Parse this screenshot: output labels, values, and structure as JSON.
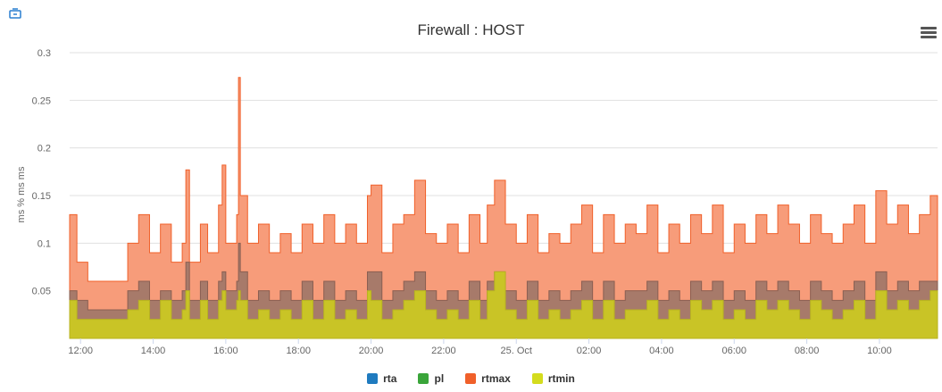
{
  "chart_data": {
    "type": "area",
    "title": "Firewall : HOST",
    "ylabel": "ms % ms ms",
    "xlabel": "",
    "ylim": [
      0,
      0.3
    ],
    "y_ticks": [
      "0.05",
      "0.1",
      "0.15",
      "0.2",
      "0.25",
      "0.3"
    ],
    "x_ticks": [
      "12:00",
      "14:00",
      "16:00",
      "18:00",
      "20:00",
      "22:00",
      "25. Oct",
      "02:00",
      "04:00",
      "06:00",
      "08:00",
      "10:00"
    ],
    "x_range_hours": [
      11.7,
      35.6
    ],
    "grid": true,
    "legend_position": "bottom",
    "series": [
      {
        "name": "rta",
        "color": "#1f7bbf"
      },
      {
        "name": "pl",
        "color": "#3aa53a"
      },
      {
        "name": "rtmax",
        "color": "#f0602a"
      },
      {
        "name": "rtmin",
        "color": "#d4dc1e"
      }
    ],
    "sampled_profile": {
      "x_hours": [
        11.7,
        11.9,
        12.2,
        12.5,
        12.8,
        13.0,
        13.3,
        13.6,
        13.9,
        14.2,
        14.5,
        14.8,
        14.9,
        15.0,
        15.3,
        15.5,
        15.8,
        15.9,
        16.0,
        16.3,
        16.35,
        16.4,
        16.6,
        16.9,
        17.2,
        17.5,
        17.8,
        18.1,
        18.4,
        18.7,
        19.0,
        19.3,
        19.6,
        19.9,
        20.0,
        20.3,
        20.6,
        20.9,
        21.2,
        21.5,
        21.8,
        22.1,
        22.4,
        22.7,
        23.0,
        23.2,
        23.4,
        23.7,
        24.0,
        24.3,
        24.6,
        24.9,
        25.2,
        25.5,
        25.8,
        26.1,
        26.4,
        26.7,
        27.0,
        27.3,
        27.6,
        27.9,
        28.2,
        28.5,
        28.8,
        29.1,
        29.4,
        29.7,
        30.0,
        30.3,
        30.6,
        30.9,
        31.2,
        31.5,
        31.8,
        32.1,
        32.4,
        32.7,
        33.0,
        33.3,
        33.6,
        33.9,
        34.2,
        34.5,
        34.8,
        35.1,
        35.4,
        35.6
      ],
      "rtmax": [
        0.13,
        0.08,
        0.06,
        0.06,
        0.06,
        0.06,
        0.1,
        0.13,
        0.09,
        0.12,
        0.08,
        0.1,
        0.177,
        0.08,
        0.12,
        0.09,
        0.14,
        0.182,
        0.1,
        0.13,
        0.274,
        0.15,
        0.1,
        0.12,
        0.09,
        0.11,
        0.09,
        0.12,
        0.1,
        0.13,
        0.1,
        0.12,
        0.1,
        0.15,
        0.161,
        0.09,
        0.12,
        0.13,
        0.166,
        0.11,
        0.1,
        0.12,
        0.09,
        0.13,
        0.1,
        0.14,
        0.166,
        0.12,
        0.1,
        0.13,
        0.09,
        0.11,
        0.1,
        0.12,
        0.14,
        0.09,
        0.13,
        0.1,
        0.12,
        0.11,
        0.14,
        0.09,
        0.12,
        0.1,
        0.13,
        0.11,
        0.14,
        0.09,
        0.12,
        0.1,
        0.13,
        0.11,
        0.14,
        0.12,
        0.1,
        0.13,
        0.11,
        0.1,
        0.12,
        0.14,
        0.1,
        0.155,
        0.12,
        0.14,
        0.11,
        0.13,
        0.15,
        0.1
      ],
      "rta": [
        0.05,
        0.04,
        0.03,
        0.03,
        0.03,
        0.03,
        0.05,
        0.06,
        0.04,
        0.05,
        0.04,
        0.05,
        0.08,
        0.04,
        0.06,
        0.04,
        0.06,
        0.07,
        0.05,
        0.06,
        0.1,
        0.07,
        0.04,
        0.05,
        0.04,
        0.05,
        0.04,
        0.06,
        0.04,
        0.06,
        0.04,
        0.05,
        0.04,
        0.07,
        0.07,
        0.04,
        0.05,
        0.06,
        0.07,
        0.05,
        0.04,
        0.05,
        0.04,
        0.06,
        0.04,
        0.06,
        0.07,
        0.05,
        0.04,
        0.06,
        0.04,
        0.05,
        0.04,
        0.05,
        0.06,
        0.04,
        0.06,
        0.04,
        0.05,
        0.05,
        0.06,
        0.04,
        0.05,
        0.04,
        0.06,
        0.05,
        0.06,
        0.04,
        0.05,
        0.04,
        0.06,
        0.05,
        0.06,
        0.05,
        0.04,
        0.06,
        0.05,
        0.04,
        0.05,
        0.06,
        0.04,
        0.07,
        0.05,
        0.06,
        0.05,
        0.06,
        0.06,
        0.04
      ],
      "rtmin": [
        0.04,
        0.02,
        0.02,
        0.02,
        0.02,
        0.02,
        0.03,
        0.04,
        0.02,
        0.04,
        0.02,
        0.03,
        0.05,
        0.02,
        0.04,
        0.02,
        0.04,
        0.05,
        0.03,
        0.04,
        0.05,
        0.04,
        0.02,
        0.03,
        0.02,
        0.03,
        0.02,
        0.04,
        0.02,
        0.04,
        0.02,
        0.03,
        0.02,
        0.05,
        0.04,
        0.02,
        0.03,
        0.04,
        0.05,
        0.03,
        0.02,
        0.03,
        0.02,
        0.04,
        0.02,
        0.05,
        0.07,
        0.03,
        0.02,
        0.04,
        0.02,
        0.03,
        0.02,
        0.03,
        0.04,
        0.02,
        0.04,
        0.02,
        0.03,
        0.03,
        0.04,
        0.02,
        0.03,
        0.02,
        0.04,
        0.03,
        0.04,
        0.02,
        0.03,
        0.02,
        0.04,
        0.03,
        0.04,
        0.03,
        0.02,
        0.04,
        0.03,
        0.02,
        0.03,
        0.04,
        0.02,
        0.05,
        0.03,
        0.04,
        0.03,
        0.04,
        0.05,
        0.02
      ]
    }
  },
  "legend": [
    {
      "label": "rta",
      "color": "#1f7bbf"
    },
    {
      "label": "pl",
      "color": "#3aa53a"
    },
    {
      "label": "rtmax",
      "color": "#f0602a"
    },
    {
      "label": "rtmin",
      "color": "#d4dc1e"
    }
  ],
  "icons": {
    "menu": "hamburger-menu-icon",
    "corner": "chart-app-icon"
  }
}
